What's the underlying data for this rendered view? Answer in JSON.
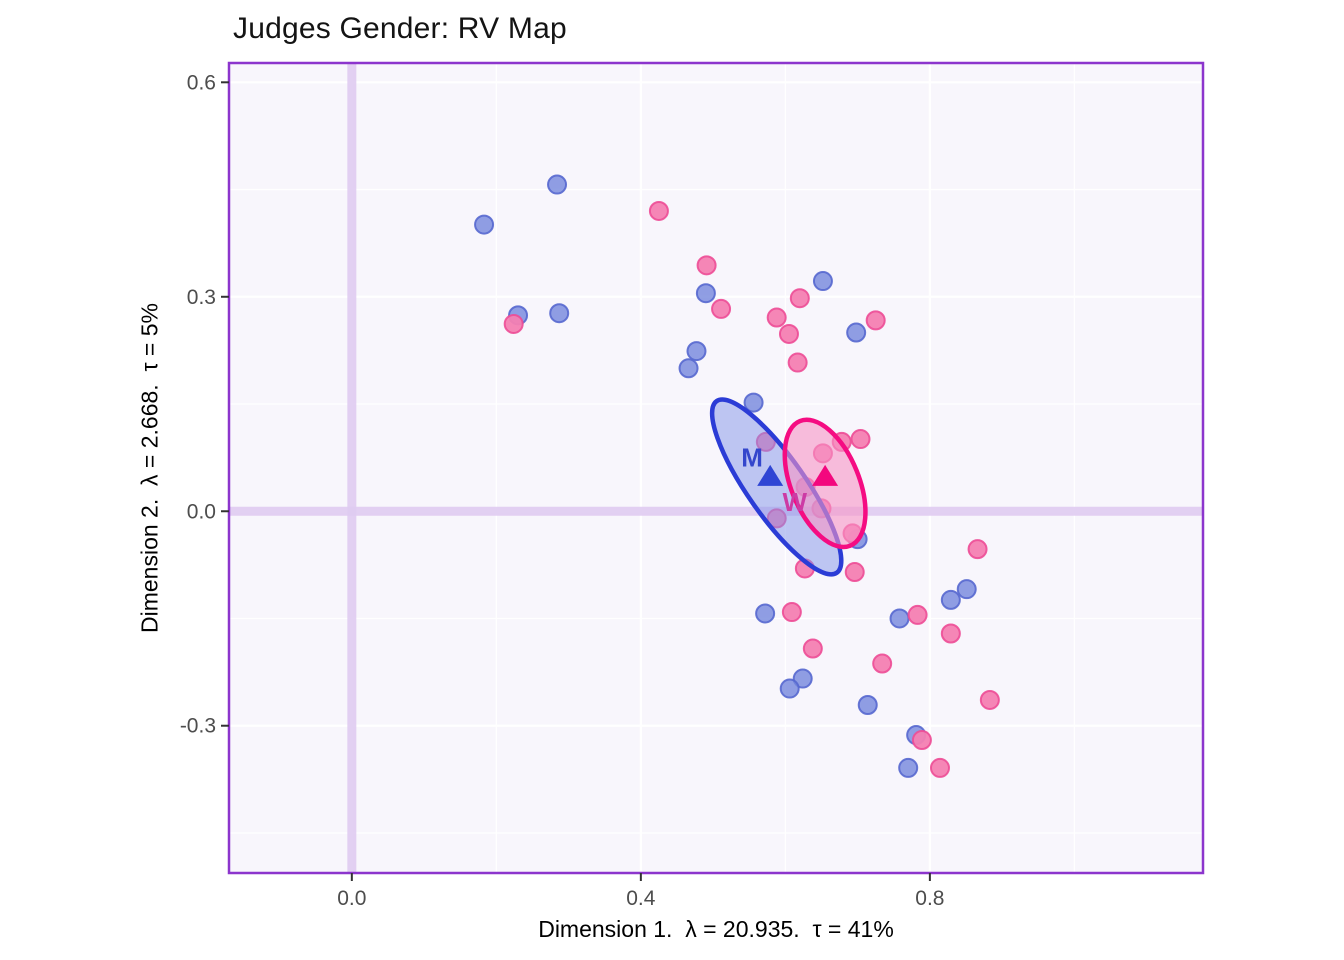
{
  "chart_data": {
    "type": "scatter",
    "title": "Judges Gender: RV Map",
    "xlabel": "Dimension 1.  λ = 20.935.  τ = 41%",
    "ylabel": "Dimension 2.  λ = 2.668.  τ = 5%",
    "xlim": [
      -0.17,
      1.178
    ],
    "ylim": [
      -0.506,
      0.627
    ],
    "grid": true,
    "x_ticks": [
      {
        "value": 0.0,
        "label": "0.0"
      },
      {
        "value": 0.4,
        "label": "0.4"
      },
      {
        "value": 0.8,
        "label": "0.8"
      }
    ],
    "y_ticks": [
      {
        "value": 0.6,
        "label": "0.6"
      },
      {
        "value": 0.3,
        "label": "0.3"
      },
      {
        "value": 0.0,
        "label": "0.0"
      },
      {
        "value": -0.3,
        "label": "-0.3"
      }
    ],
    "x_minor_ticks": [
      0.2,
      0.6,
      1.0
    ],
    "y_minor_ticks": [
      0.45,
      0.15,
      -0.15,
      -0.45
    ],
    "zero_lines": {
      "x": 0.0,
      "y": 0.0
    },
    "colors": {
      "panel_bg": "#F8F6FC",
      "panel_border": "#8C35CD",
      "grid": "#FFFFFF",
      "zero_line": "#DFCBF1",
      "tick_mark": "#333333",
      "tick_label": "#4D4D4D",
      "title": "#141414",
      "axis_title": "#000000"
    },
    "series": [
      {
        "name": "M",
        "marker": "circle",
        "point_fill": "#7487DC",
        "point_fill_opacity": 0.8,
        "point_stroke": "#5668CF",
        "points": [
          [
            0.284,
            0.457
          ],
          [
            0.183,
            0.401
          ],
          [
            0.49,
            0.305
          ],
          [
            0.23,
            0.274
          ],
          [
            0.287,
            0.277
          ],
          [
            0.652,
            0.322
          ],
          [
            0.698,
            0.25
          ],
          [
            0.477,
            0.224
          ],
          [
            0.466,
            0.2
          ],
          [
            0.556,
            0.152
          ],
          [
            0.7,
            -0.039
          ],
          [
            0.572,
            -0.143
          ],
          [
            0.851,
            -0.109
          ],
          [
            0.829,
            -0.124
          ],
          [
            0.758,
            -0.15
          ],
          [
            0.624,
            -0.234
          ],
          [
            0.606,
            -0.248
          ],
          [
            0.714,
            -0.271
          ],
          [
            0.781,
            -0.313
          ],
          [
            0.77,
            -0.359
          ]
        ],
        "centroid": {
          "x": 0.579,
          "y": 0.048,
          "label": "M",
          "label_x": 0.554,
          "label_y": 0.0755,
          "label_color": "#3446CC",
          "triangle_color": "#2F45D4"
        },
        "ellipse": {
          "cx": 0.588,
          "cy": 0.034,
          "a": 0.145,
          "b": 0.04,
          "screen_angle": 55,
          "stroke": "#2B3CD6",
          "fill": "#8193E8",
          "fill_opacity": 0.5
        }
      },
      {
        "name": "W",
        "marker": "circle",
        "point_fill": "#F47FB2",
        "point_fill_opacity": 0.95,
        "point_stroke": "#ED4D96",
        "points": [
          [
            0.425,
            0.42
          ],
          [
            0.224,
            0.262
          ],
          [
            0.491,
            0.344
          ],
          [
            0.511,
            0.283
          ],
          [
            0.62,
            0.298
          ],
          [
            0.588,
            0.271
          ],
          [
            0.605,
            0.248
          ],
          [
            0.725,
            0.267
          ],
          [
            0.617,
            0.208
          ],
          [
            0.573,
            0.097
          ],
          [
            0.652,
            0.081
          ],
          [
            0.678,
            0.097
          ],
          [
            0.704,
            0.101
          ],
          [
            0.628,
            0.034
          ],
          [
            0.65,
            0.004
          ],
          [
            0.693,
            -0.031
          ],
          [
            0.588,
            -0.01
          ],
          [
            0.627,
            -0.08
          ],
          [
            0.696,
            -0.085
          ],
          [
            0.866,
            -0.053
          ],
          [
            0.609,
            -0.141
          ],
          [
            0.783,
            -0.145
          ],
          [
            0.829,
            -0.171
          ],
          [
            0.638,
            -0.192
          ],
          [
            0.734,
            -0.213
          ],
          [
            0.883,
            -0.264
          ],
          [
            0.789,
            -0.32
          ],
          [
            0.814,
            -0.359
          ]
        ],
        "centroid": {
          "x": 0.655,
          "y": 0.048,
          "label": "W",
          "label_x": 0.613,
          "label_y": 0.0126,
          "label_color": "#CC3BA5",
          "triangle_color": "#F3077E"
        },
        "ellipse": {
          "cx": 0.655,
          "cy": 0.039,
          "a": 0.093,
          "b": 0.047,
          "screen_angle": 68,
          "stroke": "#F50C82",
          "fill": "#F795C4",
          "fill_opacity": 0.6
        }
      }
    ]
  }
}
